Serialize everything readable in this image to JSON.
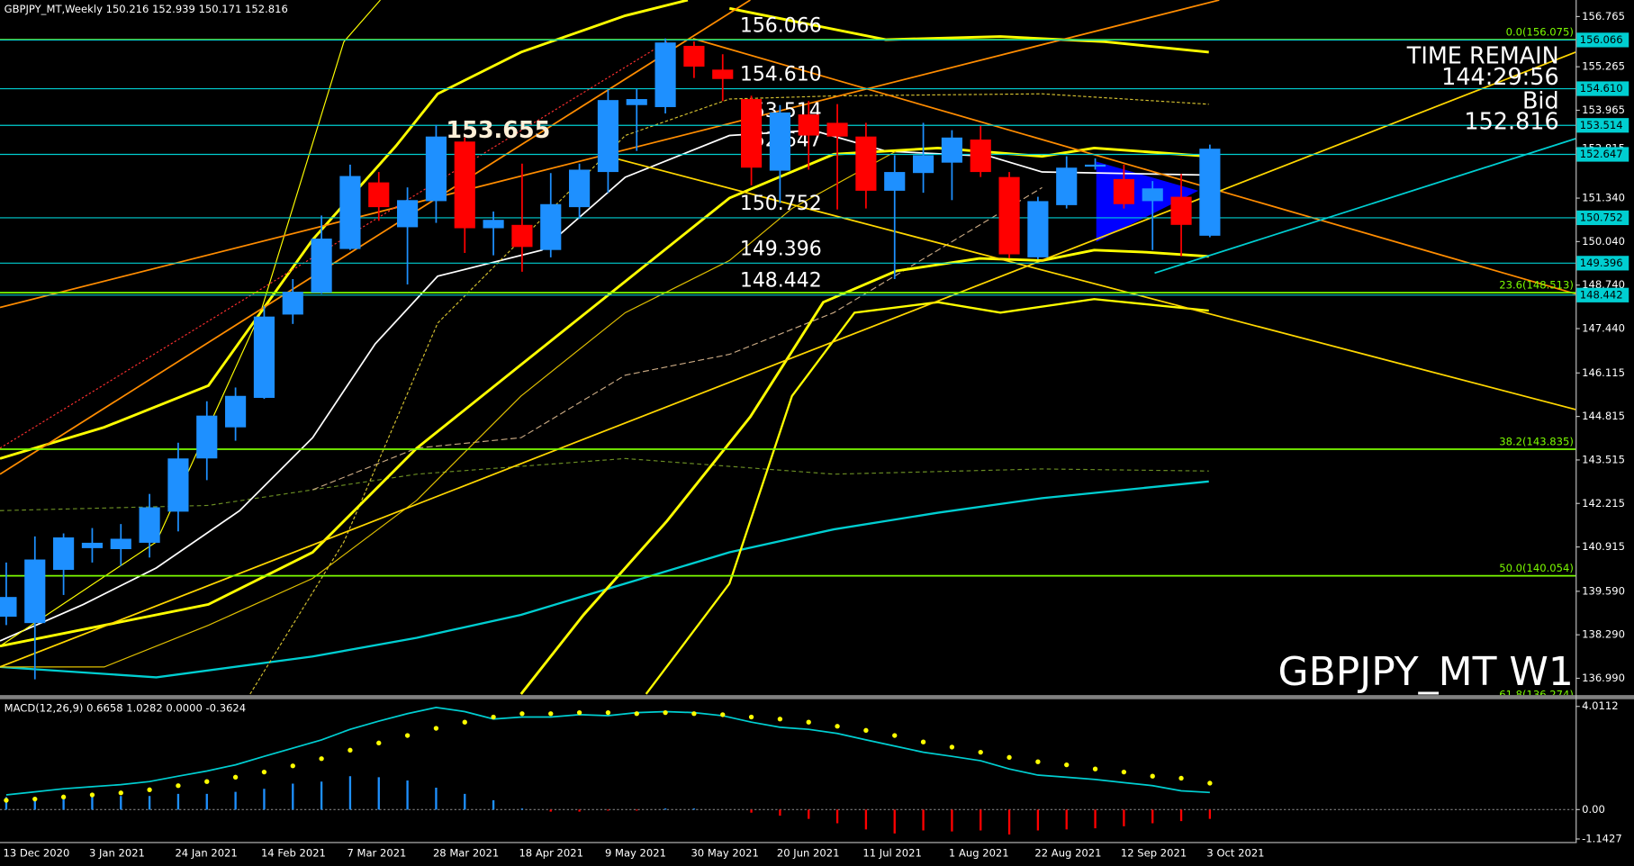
{
  "chart_data": [
    {
      "type": "candlestick",
      "title": "GBPJPY_MT,Weekly  150.216 152.939 150.171 152.816",
      "categories": [
        "13 Dec 2020",
        null,
        null,
        "3 Jan 2021",
        null,
        null,
        "24 Jan 2021",
        null,
        null,
        "14 Feb 2021",
        null,
        null,
        "7 Mar 2021",
        null,
        null,
        "28 Mar 2021",
        null,
        null,
        "18 Apr 2021",
        null,
        null,
        "9 May 2021",
        null,
        null,
        "30 May 2021",
        null,
        null,
        "20 Jun 2021",
        null,
        null,
        "11 Jul 2021",
        null,
        null,
        "1 Aug 2021",
        null,
        null,
        "22 Aug 2021",
        null,
        null,
        "12 Sep 2021",
        null,
        null,
        "3 Oct 2021"
      ],
      "open": [
        138.83,
        138.64,
        140.23,
        140.88,
        140.85,
        141.04,
        141.97,
        143.56,
        144.49,
        145.37,
        147.86,
        148.51,
        149.82,
        151.81,
        150.47,
        151.25,
        153.03,
        150.44,
        150.54,
        149.79,
        151.07,
        152.12,
        154.12,
        154.06,
        155.89,
        155.18,
        154.3,
        152.16,
        153.84,
        153.59,
        153.18,
        151.56,
        152.09,
        152.4,
        153.09,
        151.97,
        149.57,
        151.13,
        152.28,
        151.91,
        151.25,
        151.38,
        150.216
      ],
      "high": [
        140.45,
        141.23,
        141.32,
        141.48,
        141.6,
        142.5,
        144.03,
        145.27,
        145.68,
        148.11,
        148.92,
        150.82,
        152.34,
        152.12,
        151.66,
        153.53,
        153.15,
        150.94,
        152.37,
        152.09,
        152.37,
        154.58,
        154.61,
        156.11,
        156.02,
        155.64,
        154.4,
        154.12,
        154.24,
        154.15,
        153.59,
        152.62,
        153.59,
        153.37,
        153.5,
        152.12,
        151.38,
        152.59,
        152.53,
        152.34,
        151.85,
        152.06,
        152.939
      ],
      "low": [
        138.58,
        136.96,
        139.48,
        140.45,
        140.35,
        140.6,
        141.38,
        142.91,
        144.09,
        145.34,
        147.58,
        148.48,
        149.79,
        150.66,
        148.76,
        150.6,
        149.7,
        149.63,
        149.14,
        149.57,
        150.72,
        151.5,
        152.75,
        153.87,
        154.93,
        154.24,
        151.72,
        151.19,
        152.19,
        151.0,
        151.03,
        148.92,
        151.5,
        151.28,
        151.97,
        149.54,
        149.51,
        151.03,
        152.19,
        151.03,
        149.79,
        149.6,
        150.171
      ],
      "close": [
        139.42,
        140.54,
        141.2,
        141.04,
        141.16,
        142.1,
        143.56,
        144.84,
        145.43,
        147.8,
        148.54,
        150.13,
        152.0,
        151.07,
        151.28,
        153.18,
        150.44,
        150.69,
        149.88,
        151.16,
        152.19,
        154.27,
        154.3,
        155.99,
        155.27,
        154.9,
        152.25,
        153.9,
        153.21,
        153.18,
        151.56,
        152.12,
        152.62,
        153.15,
        152.12,
        149.66,
        151.25,
        152.25,
        152.34,
        151.16,
        151.63,
        150.54,
        152.816
      ],
      "up_color": "#1e90ff",
      "down_color": "#ff0000",
      "ylim": [
        136.52,
        157.01
      ],
      "yticks": [
        156.765,
        155.265,
        153.965,
        152.815,
        {
          "value": 151.34,
          "label": "151.340"
        },
        {
          "value": 150.04,
          "label": "150.040"
        },
        {
          "value": 148.74,
          "label": "148.740"
        },
        {
          "value": 147.44,
          "label": "147.440"
        },
        146.115,
        144.815,
        143.515,
        142.215,
        140.915,
        {
          "value": 139.59,
          "label": "139.590"
        },
        {
          "value": 138.29,
          "label": "138.290"
        },
        {
          "value": 136.99,
          "label": "136.990"
        }
      ],
      "grid": false,
      "levels": [
        156.066,
        {
          "value": 154.61,
          "label": "154.610"
        },
        153.514,
        152.647,
        150.752,
        149.396,
        148.442
      ],
      "level_color": "#00ced1",
      "fib_levels": [
        {
          "value": 156.075,
          "label": "0.0(156.075)"
        },
        {
          "value": 148.513,
          "label": "23.6(148.513)"
        },
        {
          "value": 143.835,
          "label": "38.2(143.835)"
        },
        {
          "value": 140.054,
          "label": "50.0(140.054)"
        },
        {
          "value": 136.274,
          "label": "61.8(136.274)"
        }
      ],
      "fib_color": "#7cfc00",
      "peak_label": 153.655,
      "info_panel": [
        "TIME REMAIN",
        "144:29:56",
        "Bid",
        "152.816"
      ],
      "watermark": "GBPJPY_MT W1"
    },
    {
      "type": "macd",
      "title": "MACD(12,26,9) 0.6658 1.0282 0.0000 -0.3624",
      "histogram": [
        0.49,
        0.49,
        0.57,
        0.53,
        0.53,
        0.53,
        0.61,
        0.61,
        0.69,
        0.81,
        1.01,
        1.09,
        1.3,
        1.26,
        1.13,
        0.85,
        0.61,
        0.36,
        0.04,
        -0.08,
        -0.08,
        -0.04,
        -0.04,
        0.04,
        0.04,
        0,
        -0.12,
        -0.24,
        -0.36,
        -0.53,
        -0.77,
        -0.93,
        -0.81,
        -0.85,
        -0.81,
        -0.97,
        -0.81,
        -0.77,
        -0.73,
        -0.65,
        -0.53,
        -0.45,
        -0.3624
      ],
      "signal": [
        0.36,
        0.41,
        0.49,
        0.57,
        0.65,
        0.77,
        0.93,
        1.09,
        1.26,
        1.46,
        1.7,
        1.98,
        2.31,
        2.59,
        2.88,
        3.16,
        3.4,
        3.6,
        3.73,
        3.73,
        3.77,
        3.77,
        3.73,
        3.77,
        3.73,
        3.69,
        3.6,
        3.52,
        3.4,
        3.24,
        3.08,
        2.88,
        2.63,
        2.43,
        2.23,
        2.03,
        1.86,
        1.74,
        1.58,
        1.46,
        1.3,
        1.22,
        1.0282
      ],
      "main": [
        0.57,
        0.69,
        0.81,
        0.89,
        0.97,
        1.09,
        1.3,
        1.5,
        1.74,
        2.07,
        2.39,
        2.71,
        3.12,
        3.44,
        3.73,
        3.97,
        3.81,
        3.52,
        3.6,
        3.6,
        3.69,
        3.65,
        3.77,
        3.81,
        3.77,
        3.65,
        3.4,
        3.2,
        3.12,
        2.96,
        2.71,
        2.47,
        2.23,
        2.07,
        1.9,
        1.58,
        1.34,
        1.26,
        1.17,
        1.05,
        0.93,
        0.73,
        0.6658
      ],
      "positive_color": "#1e90ff",
      "negative_color": "#ff0000",
      "signal_color": "#ffff00",
      "main_color": "#00ced1",
      "ylim": [
        -1.26,
        4.25
      ],
      "yticks": [
        4.0112,
        {
          "value": 0,
          "label": "0.00"
        },
        -1.1427
      ]
    }
  ]
}
